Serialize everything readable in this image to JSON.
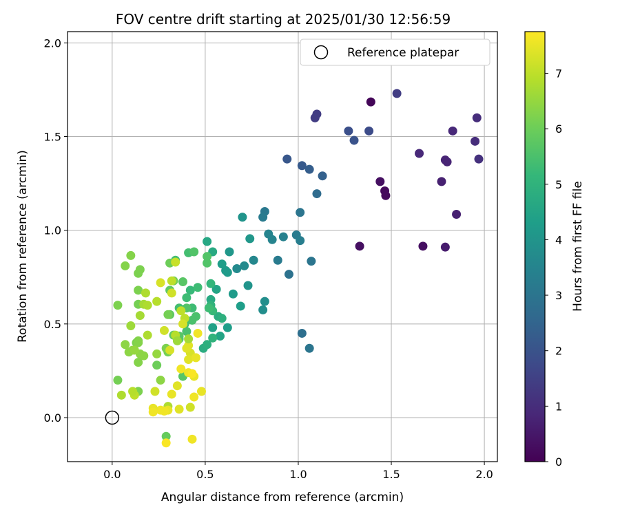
{
  "chart_data": {
    "type": "scatter",
    "title": "FOV centre drift starting at 2025/01/30 12:56:59",
    "xlabel": "Angular distance from reference (arcmin)",
    "ylabel": "Rotation from reference (arcmin)",
    "xlim": [
      -0.24,
      2.07
    ],
    "ylim": [
      -0.235,
      2.06
    ],
    "xticks": [
      0.0,
      0.5,
      1.0,
      1.5,
      2.0
    ],
    "yticks": [
      0.0,
      0.5,
      1.0,
      1.5,
      2.0
    ],
    "grid": true,
    "legend": {
      "placement": "top-right",
      "entries": [
        "Reference platepar"
      ]
    },
    "reference_point": {
      "label": "Reference platepar",
      "x": 0.0,
      "y": 0.0
    },
    "colorbar": {
      "label": "Hours from first FF file",
      "range": [
        0,
        7.75
      ],
      "ticks": [
        0,
        1,
        2,
        3,
        4,
        5,
        6,
        7
      ],
      "colormap": "viridis",
      "colormap_stops": [
        "#440154",
        "#482878",
        "#3e4989",
        "#31688e",
        "#26828e",
        "#1f9e89",
        "#35b779",
        "#6ece58",
        "#b5de2b",
        "#fde725"
      ]
    },
    "series": [
      {
        "points": [
          [
            1.39,
            1.685,
            0.1
          ],
          [
            1.465,
            1.21,
            0.2
          ],
          [
            1.47,
            1.185,
            0.2
          ],
          [
            1.44,
            1.26,
            0.3
          ],
          [
            1.33,
            0.915,
            0.3
          ],
          [
            1.67,
            0.915,
            0.3
          ],
          [
            1.79,
            0.91,
            0.6
          ],
          [
            1.85,
            1.085,
            0.7
          ],
          [
            1.77,
            1.26,
            0.7
          ],
          [
            1.79,
            1.375,
            0.8
          ],
          [
            1.8,
            1.365,
            0.8
          ],
          [
            1.65,
            1.41,
            0.9
          ],
          [
            1.83,
            1.53,
            0.9
          ],
          [
            1.95,
            1.475,
            1.0
          ],
          [
            1.96,
            1.6,
            1.0
          ],
          [
            1.97,
            1.38,
            1.1
          ],
          [
            1.09,
            1.6,
            1.4
          ],
          [
            1.1,
            1.62,
            1.4
          ],
          [
            1.53,
            1.73,
            1.4
          ],
          [
            1.38,
            1.53,
            1.8
          ],
          [
            1.27,
            1.53,
            1.9
          ],
          [
            1.3,
            1.48,
            2.0
          ],
          [
            0.94,
            1.38,
            2.1
          ],
          [
            1.02,
            1.345,
            2.2
          ],
          [
            1.06,
            1.325,
            2.3
          ],
          [
            1.13,
            1.29,
            2.4
          ],
          [
            1.1,
            1.195,
            2.7
          ],
          [
            1.01,
            1.095,
            3.0
          ],
          [
            0.95,
            0.765,
            2.9
          ],
          [
            1.07,
            0.835,
            3.0
          ],
          [
            1.02,
            0.45,
            2.8
          ],
          [
            1.06,
            0.37,
            3.0
          ],
          [
            0.82,
            1.1,
            3.1
          ],
          [
            0.81,
            1.07,
            3.2
          ],
          [
            0.89,
            0.84,
            3.2
          ],
          [
            0.99,
            0.975,
            3.2
          ],
          [
            1.01,
            0.945,
            3.3
          ],
          [
            0.92,
            0.965,
            3.4
          ],
          [
            0.86,
            0.95,
            3.5
          ],
          [
            0.84,
            0.98,
            3.5
          ],
          [
            0.76,
            0.84,
            3.6
          ],
          [
            0.71,
            0.81,
            3.7
          ],
          [
            0.67,
            0.795,
            3.7
          ],
          [
            0.82,
            0.62,
            3.8
          ],
          [
            0.81,
            0.575,
            3.8
          ],
          [
            0.73,
            0.705,
            4.0
          ],
          [
            0.7,
            1.07,
            4.0
          ],
          [
            0.74,
            0.955,
            4.1
          ],
          [
            0.63,
            0.885,
            4.1
          ],
          [
            0.61,
            0.785,
            4.2
          ],
          [
            0.62,
            0.775,
            4.2
          ],
          [
            0.59,
            0.82,
            4.3
          ],
          [
            0.65,
            0.66,
            4.2
          ],
          [
            0.69,
            0.595,
            4.3
          ],
          [
            0.62,
            0.48,
            4.3
          ],
          [
            0.54,
            0.48,
            4.4
          ],
          [
            0.58,
            0.435,
            4.5
          ],
          [
            0.56,
            0.685,
            4.5
          ],
          [
            0.51,
            0.94,
            4.6
          ],
          [
            0.54,
            0.885,
            4.7
          ],
          [
            0.53,
            0.63,
            4.7
          ],
          [
            0.57,
            0.54,
            4.8
          ],
          [
            0.59,
            0.53,
            4.9
          ],
          [
            0.49,
            0.37,
            4.8
          ],
          [
            0.51,
            0.39,
            4.9
          ],
          [
            0.54,
            0.425,
            5.0
          ],
          [
            0.53,
            0.6,
            5.0
          ],
          [
            0.53,
            0.715,
            5.1
          ],
          [
            0.54,
            0.57,
            5.2
          ],
          [
            0.52,
            0.585,
            5.3
          ],
          [
            0.42,
            0.68,
            5.2
          ],
          [
            0.43,
            0.585,
            5.3
          ],
          [
            0.46,
            0.695,
            5.3
          ],
          [
            0.4,
            0.64,
            5.3
          ],
          [
            0.39,
            0.5,
            5.4
          ],
          [
            0.41,
            0.88,
            5.4
          ],
          [
            0.36,
            0.585,
            5.4
          ],
          [
            0.34,
            0.84,
            5.4
          ],
          [
            0.43,
            0.52,
            5.5
          ],
          [
            0.4,
            0.46,
            5.5
          ],
          [
            0.45,
            0.54,
            5.5
          ],
          [
            0.44,
            0.885,
            5.6
          ],
          [
            0.4,
            0.585,
            5.6
          ],
          [
            0.38,
            0.725,
            5.7
          ],
          [
            0.36,
            0.435,
            5.7
          ],
          [
            0.36,
            0.42,
            5.7
          ],
          [
            0.31,
            0.55,
            5.8
          ],
          [
            0.33,
            0.44,
            5.8
          ],
          [
            0.31,
            0.68,
            5.8
          ],
          [
            0.38,
            0.22,
            5.7
          ],
          [
            0.51,
            0.825,
            5.6
          ],
          [
            0.51,
            0.86,
            5.6
          ],
          [
            0.29,
            -0.1,
            5.9
          ],
          [
            0.31,
            0.825,
            6.0
          ],
          [
            0.33,
            0.73,
            6.1
          ],
          [
            0.24,
            0.28,
            6.0
          ],
          [
            0.3,
            0.55,
            6.1
          ],
          [
            0.3,
            0.35,
            6.1
          ],
          [
            0.29,
            0.37,
            6.2
          ],
          [
            0.14,
            0.605,
            6.1
          ],
          [
            0.14,
            0.68,
            6.2
          ],
          [
            0.15,
            0.79,
            6.2
          ],
          [
            0.14,
            0.77,
            6.2
          ],
          [
            0.1,
            0.865,
            6.3
          ],
          [
            0.07,
            0.81,
            6.3
          ],
          [
            0.03,
            0.6,
            6.2
          ],
          [
            0.14,
            0.41,
            6.3
          ],
          [
            0.13,
            0.4,
            6.2
          ],
          [
            0.14,
            0.4,
            6.3
          ],
          [
            0.09,
            0.35,
            6.4
          ],
          [
            0.11,
            0.36,
            6.4
          ],
          [
            0.07,
            0.39,
            6.4
          ],
          [
            0.15,
            0.34,
            6.4
          ],
          [
            0.17,
            0.33,
            6.4
          ],
          [
            0.14,
            0.295,
            6.3
          ],
          [
            0.14,
            0.14,
            6.2
          ],
          [
            0.12,
            0.36,
            6.5
          ],
          [
            0.1,
            0.49,
            6.6
          ],
          [
            0.15,
            0.545,
            6.7
          ],
          [
            0.17,
            0.605,
            6.7
          ],
          [
            0.18,
            0.665,
            6.8
          ],
          [
            0.19,
            0.6,
            6.8
          ],
          [
            0.19,
            0.44,
            6.8
          ],
          [
            0.24,
            0.62,
            6.9
          ],
          [
            0.32,
            0.73,
            7.0
          ],
          [
            0.3,
            0.06,
            6.8
          ],
          [
            0.34,
            0.44,
            6.9
          ],
          [
            0.37,
            0.57,
            7.0
          ],
          [
            0.39,
            0.53,
            7.0
          ],
          [
            0.34,
            0.83,
            7.1
          ],
          [
            0.28,
            0.465,
            7.2
          ],
          [
            0.26,
            0.72,
            7.3
          ],
          [
            0.32,
            0.665,
            7.2
          ],
          [
            0.38,
            0.5,
            7.3
          ],
          [
            0.42,
            0.345,
            7.3
          ],
          [
            0.41,
            0.385,
            7.4
          ],
          [
            0.41,
            0.31,
            7.4
          ],
          [
            0.4,
            0.37,
            7.4
          ],
          [
            0.44,
            0.22,
            7.5
          ],
          [
            0.45,
            0.32,
            7.5
          ],
          [
            0.46,
            0.45,
            7.6
          ],
          [
            0.41,
            0.24,
            7.6
          ],
          [
            0.43,
            0.235,
            7.7
          ],
          [
            0.37,
            0.26,
            7.6
          ],
          [
            0.35,
            0.17,
            7.4
          ],
          [
            0.31,
            0.36,
            7.3
          ],
          [
            0.3,
            0.04,
            7.5
          ],
          [
            0.28,
            0.035,
            7.6
          ],
          [
            0.26,
            0.04,
            7.6
          ],
          [
            0.22,
            0.05,
            7.5
          ],
          [
            0.22,
            0.03,
            7.6
          ],
          [
            0.23,
            0.14,
            7.2
          ],
          [
            0.26,
            0.2,
            6.4
          ],
          [
            0.32,
            0.125,
            7.5
          ],
          [
            0.36,
            0.045,
            7.4
          ],
          [
            0.42,
            0.055,
            7.2
          ],
          [
            0.44,
            0.11,
            7.6
          ],
          [
            0.48,
            0.14,
            7.5
          ],
          [
            0.43,
            -0.115,
            7.6
          ],
          [
            0.29,
            -0.135,
            7.7
          ],
          [
            0.24,
            0.34,
            6.5
          ],
          [
            0.12,
            0.12,
            7.0
          ],
          [
            0.11,
            0.14,
            6.9
          ],
          [
            0.05,
            0.12,
            6.8
          ],
          [
            0.03,
            0.2,
            6.1
          ],
          [
            0.35,
            0.41,
            6.6
          ],
          [
            0.41,
            0.42,
            6.7
          ]
        ]
      }
    ]
  }
}
